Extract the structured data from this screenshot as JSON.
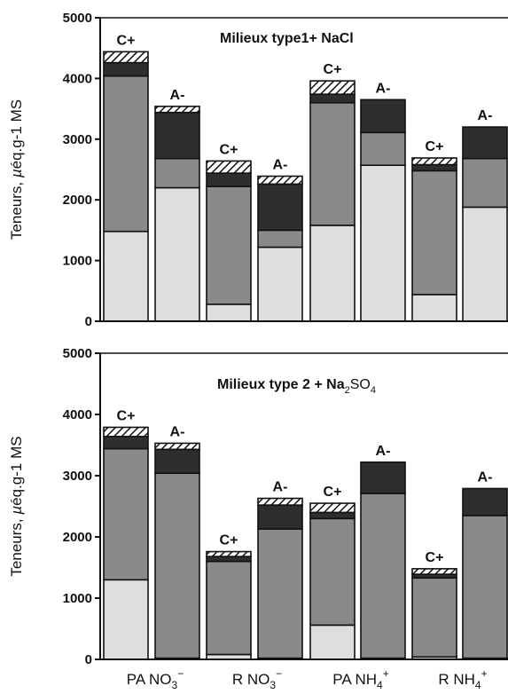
{
  "chart_data": [
    {
      "type": "bar",
      "stacked": true,
      "title": "Milieux type1+ NaCl",
      "ylabel": "Teneurs, µéq.g-1 MS",
      "ylim": [
        0,
        5000
      ],
      "yticks": [
        "0",
        "1000",
        "2000",
        "3000",
        "4000",
        "5000"
      ],
      "segment_colors": [
        "#dedede",
        "#8a8a8a",
        "#2e2e2e",
        "hatched"
      ],
      "bars": [
        {
          "label": "C+",
          "segments": [
            1480,
            2560,
            220,
            180
          ]
        },
        {
          "label": "A-",
          "segments": [
            2200,
            480,
            760,
            100
          ]
        },
        {
          "label": "C+",
          "segments": [
            280,
            1940,
            220,
            200
          ]
        },
        {
          "label": "A-",
          "segments": [
            1220,
            280,
            760,
            130
          ]
        },
        {
          "label": "C+",
          "segments": [
            1580,
            2020,
            140,
            220
          ]
        },
        {
          "label": "A-",
          "segments": [
            2570,
            540,
            540,
            0
          ]
        },
        {
          "label": "C+",
          "segments": [
            440,
            2040,
            100,
            110
          ]
        },
        {
          "label": "A-",
          "segments": [
            1880,
            800,
            520,
            0
          ]
        }
      ]
    },
    {
      "type": "bar",
      "stacked": true,
      "title": "Milieux type 2 + Na",
      "title_sub": "2",
      "title_end": "SO",
      "title_sub2": "4",
      "ylabel": "Teneurs, µéq.g-1 MS",
      "ylim": [
        0,
        5000
      ],
      "yticks": [
        "0",
        "1000",
        "2000",
        "3000",
        "4000",
        "5000"
      ],
      "segment_colors": [
        "#dedede",
        "#8a8a8a",
        "#2e2e2e",
        "hatched"
      ],
      "bars": [
        {
          "label": "C+",
          "segments": [
            1300,
            2140,
            200,
            150
          ]
        },
        {
          "label": "A-",
          "segments": [
            20,
            3020,
            390,
            100
          ]
        },
        {
          "label": "C+",
          "segments": [
            80,
            1520,
            80,
            80
          ]
        },
        {
          "label": "A-",
          "segments": [
            20,
            2110,
            390,
            110
          ]
        },
        {
          "label": "C+",
          "segments": [
            560,
            1740,
            100,
            150
          ]
        },
        {
          "label": "A-",
          "segments": [
            20,
            2690,
            510,
            0
          ]
        },
        {
          "label": "C+",
          "segments": [
            40,
            1290,
            60,
            90
          ]
        },
        {
          "label": "A-",
          "segments": [
            20,
            2330,
            440,
            0
          ]
        }
      ]
    }
  ],
  "categories": [
    {
      "main": "PA NO",
      "sub": "3",
      "sup": "−"
    },
    {
      "main": "R NO",
      "sub": "3",
      "sup": "−"
    },
    {
      "main": "PA NH",
      "sub": "4",
      "sup": "+"
    },
    {
      "main": "R NH",
      "sub": "4",
      "sup": "+"
    }
  ]
}
